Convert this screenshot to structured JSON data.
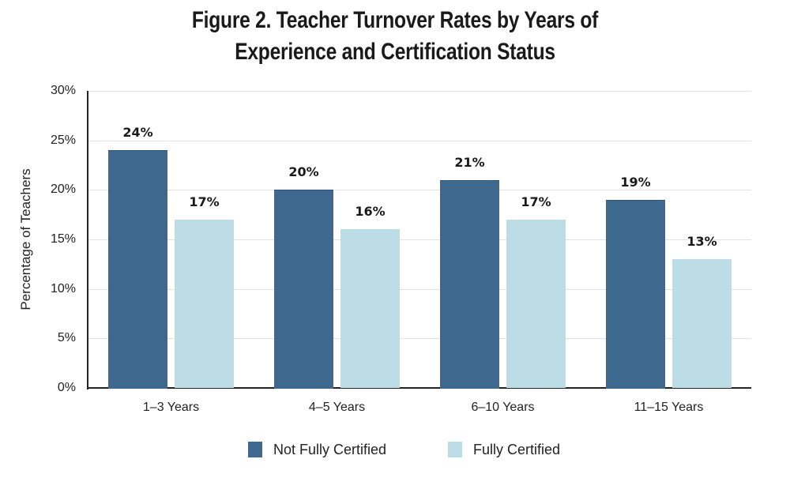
{
  "title": {
    "line1": "Figure 2. Teacher Turnover Rates by Years of",
    "line2": "Experience and Certification Status"
  },
  "axis": {
    "ylabel": "Percentage of Teachers",
    "yticks": [
      "0%",
      "5%",
      "10%",
      "15%",
      "20%",
      "25%",
      "30%"
    ]
  },
  "categories": [
    "1–3 Years",
    "4–5 Years",
    "6–10 Years",
    "11–15 Years"
  ],
  "legend": {
    "items": [
      {
        "label": "Not Fully Certified",
        "color": "#3e688d"
      },
      {
        "label": "Fully Certified",
        "color": "#bcdde5"
      }
    ]
  },
  "labels": {
    "not_fully": [
      "24%",
      "20%",
      "21%",
      "19%"
    ],
    "fully": [
      "17%",
      "16%",
      "17%",
      "13%"
    ]
  },
  "chart_data": {
    "type": "bar",
    "title": "Figure 2. Teacher Turnover Rates by Years of Experience and Certification Status",
    "xlabel": "",
    "ylabel": "Percentage of Teachers",
    "categories": [
      "1–3 Years",
      "4–5 Years",
      "6–10 Years",
      "11–15 Years"
    ],
    "series": [
      {
        "name": "Not Fully Certified",
        "values": [
          24,
          20,
          21,
          19
        ],
        "color": "#3e688d"
      },
      {
        "name": "Fully Certified",
        "values": [
          17,
          16,
          17,
          13
        ],
        "color": "#bcdde5"
      }
    ],
    "ylim": [
      0,
      30
    ],
    "yticks": [
      0,
      5,
      10,
      15,
      20,
      25,
      30
    ],
    "ytick_format": "percent",
    "grid": true,
    "legend_position": "bottom",
    "data_labels": true
  }
}
